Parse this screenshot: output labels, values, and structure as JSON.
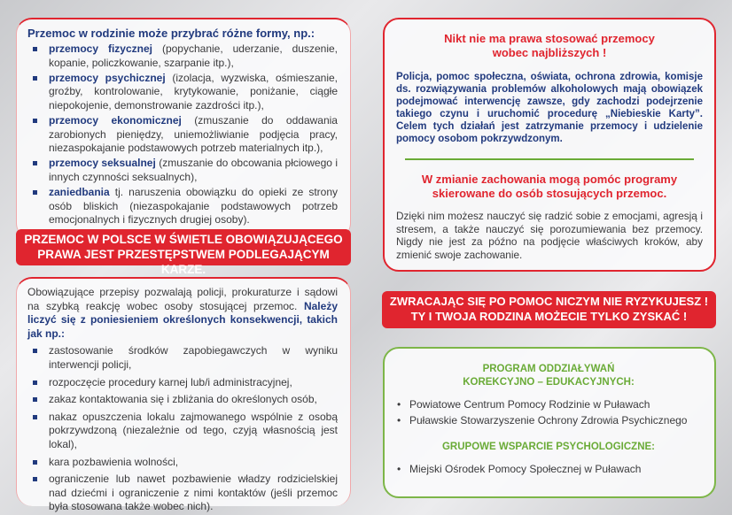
{
  "forms": {
    "title": "Przemoc w rodzinie może przybrać różne formy, np.:",
    "items": [
      {
        "term": "przemocy fizycznej",
        "desc": " (popychanie, uderzanie, duszenie, kopanie, policzkowanie, szarpanie itp.),"
      },
      {
        "term": "przemocy psychicznej",
        "desc": " (izolacja, wyzwiska, ośmieszanie, groźby, kontrolowanie, krytykowanie, poniżanie, ciągłe niepokojenie, demonstrowanie zazdrości itp.),"
      },
      {
        "term": "przemocy ekonomicznej",
        "desc": " (zmuszanie do oddawania zarobionych pieniędzy, uniemożliwianie podjęcia pracy, niezaspokajanie podstawowych potrzeb materialnych itp.),"
      },
      {
        "term": "przemocy seksualnej",
        "desc": " (zmuszanie do obcowania płciowego i innych czynności seksualnych),"
      },
      {
        "term": "zaniedbania",
        "desc": " tj. naruszenia obowiązku do opieki ze strony osób bliskich (niezaspokajanie podstawowych potrzeb emocjonalnych i fizycznych drugiej osoby)."
      }
    ]
  },
  "law_banner": {
    "line1": "PRZEMOC W POLSCE W ŚWIETLE OBOWIĄZUJĄCEGO",
    "line2": "PRAWA JEST PRZESTĘPSTWEM PODLEGAJĄCYM KARZE."
  },
  "consequences": {
    "intro": "Obowiązujące przepisy pozwalają policji, prokuraturze i sądowi na szybką reakcję wobec osoby stosującej przemoc. ",
    "intro_bold": "Należy liczyć się z poniesieniem określonych konsekwencji, takich jak np.:",
    "items": [
      "zastosowanie środków zapobiegawczych w wyniku interwencji policji,",
      "rozpoczęcie procedury karnej lub/i administracyjnej,",
      "zakaz kontaktowania się i zbliżania do określonych osób,",
      "nakaz opuszczenia lokalu zajmowanego wspólnie z osobą pokrzywdzoną (niezależnie od tego, czyją własnością jest lokal),",
      "kara pozbawienia wolności,",
      "ograniczenie lub nawet pozbawienie władzy rodzicielskiej nad dziećmi i ograniczenie z nimi kontaktów (jeśli przemoc była stosowana także wobec nich)."
    ]
  },
  "no_right": {
    "title1": "Nikt nie ma prawa stosować przemocy",
    "title2": "wobec najbliższych !",
    "body": "Policja, pomoc społeczna, oświata, ochrona zdrowia, komisje ds. rozwiązywania problemów alkoholowych mają obowiązek podejmować interwencję zawsze, gdy zachodzi podejrzenie takiego czynu i uruchomić procedurę „Niebieskie Karty”. Celem tych działań jest zatrzymanie przemocy i udzielenie pomocy osobom pokrzywdzonym.",
    "title3": "W zmianie zachowania mogą pomóc programy",
    "title4": "skierowane do osób stosujących przemoc.",
    "body2": "Dzięki nim możesz nauczyć się radzić sobie z emocjami, agresją i stresem, a także nauczyć się porozumiewania bez przemocy. Nigdy nie jest za późno na podjęcie właściwych kroków, aby zmienić swoje zachowanie."
  },
  "help_banner": {
    "line1": "ZWRACAJĄC SIĘ PO POMOC NICZYM NIE RYZYKUJESZ !",
    "line2": "TY I TWOJA RODZINA MOŻECIE TYLKO ZYSKAĆ !"
  },
  "programs": {
    "title1": "PROGRAM ODDZIAŁYWAŃ",
    "title2": "KOREKCYJNO – EDUKACYJNYCH:",
    "items": [
      "Powiatowe Centrum Pomocy Rodzinie w Puławach",
      "Puławskie Stowarzyszenie Ochrony Zdrowia Psychicznego"
    ],
    "title3": "GRUPOWE WSPARCIE PSYCHOLOGICZNE:",
    "items2": [
      "Miejski Ośrodek Pomocy Społecznej w Puławach"
    ]
  },
  "colors": {
    "red": "#e0252f",
    "navy": "#213a7e",
    "green": "#7db648"
  }
}
